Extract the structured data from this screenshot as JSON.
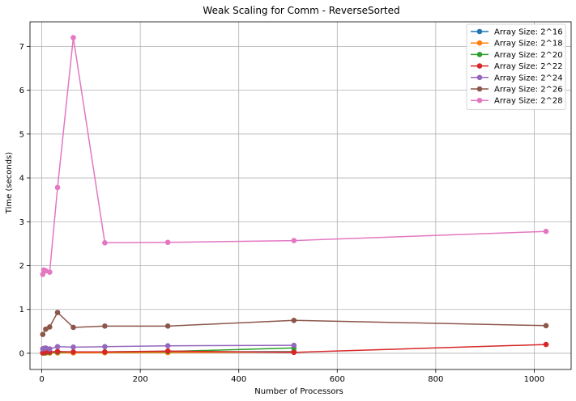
{
  "chart_data": {
    "type": "line",
    "title": "Weak Scaling for Comm - ReverseSorted",
    "xlabel": "Number of Processors",
    "ylabel": "Time (seconds)",
    "xlim": [
      -24,
      1075
    ],
    "ylim": [
      -0.37,
      7.56
    ],
    "xticks": [
      0,
      200,
      400,
      600,
      800,
      1000
    ],
    "yticks": [
      0,
      1,
      2,
      3,
      4,
      5,
      6,
      7
    ],
    "grid": true,
    "legend_position": "top-right",
    "series": [
      {
        "name": "Array Size: 2^16",
        "color": "#1f77b4",
        "x": [
          2,
          4,
          8,
          16,
          32,
          64,
          128,
          256,
          512
        ],
        "y": [
          0.005,
          0.006,
          0.008,
          0.01,
          0.012,
          0.015,
          0.018,
          0.025,
          0.04
        ]
      },
      {
        "name": "Array Size: 2^18",
        "color": "#ff7f0e",
        "x": [
          2,
          4,
          8,
          16,
          32,
          64,
          128,
          256,
          512
        ],
        "y": [
          0.004,
          0.005,
          0.006,
          0.007,
          0.008,
          0.01,
          0.012,
          0.015,
          0.03
        ]
      },
      {
        "name": "Array Size: 2^20",
        "color": "#2ca02c",
        "x": [
          2,
          4,
          8,
          16,
          32,
          64,
          128,
          256,
          512
        ],
        "y": [
          0.01,
          0.012,
          0.015,
          0.02,
          0.025,
          0.03,
          0.03,
          0.04,
          0.12
        ]
      },
      {
        "name": "Array Size: 2^22",
        "color": "#d62728",
        "x": [
          2,
          4,
          8,
          16,
          32,
          64,
          128,
          256,
          512,
          1024
        ],
        "y": [
          0.01,
          0.02,
          0.03,
          0.03,
          0.04,
          0.03,
          0.03,
          0.05,
          0.02,
          0.2
        ]
      },
      {
        "name": "Array Size: 2^24",
        "color": "#9467bd",
        "x": [
          2,
          4,
          8,
          16,
          32,
          64,
          128,
          256,
          512
        ],
        "y": [
          0.1,
          0.11,
          0.12,
          0.1,
          0.15,
          0.14,
          0.15,
          0.17,
          0.18
        ]
      },
      {
        "name": "Array Size: 2^26",
        "color": "#8c564b",
        "x": [
          2,
          8,
          16,
          32,
          64,
          128,
          256,
          512,
          1024
        ],
        "y": [
          0.43,
          0.55,
          0.6,
          0.93,
          0.59,
          0.62,
          0.62,
          0.75,
          0.63
        ]
      },
      {
        "name": "Array Size: 2^28",
        "color": "#e377c2",
        "x": [
          2,
          4,
          8,
          16,
          32,
          64,
          128,
          256,
          512,
          1024
        ],
        "y": [
          1.8,
          1.9,
          1.88,
          1.85,
          3.78,
          7.2,
          2.52,
          2.53,
          2.57,
          2.78
        ]
      }
    ]
  }
}
